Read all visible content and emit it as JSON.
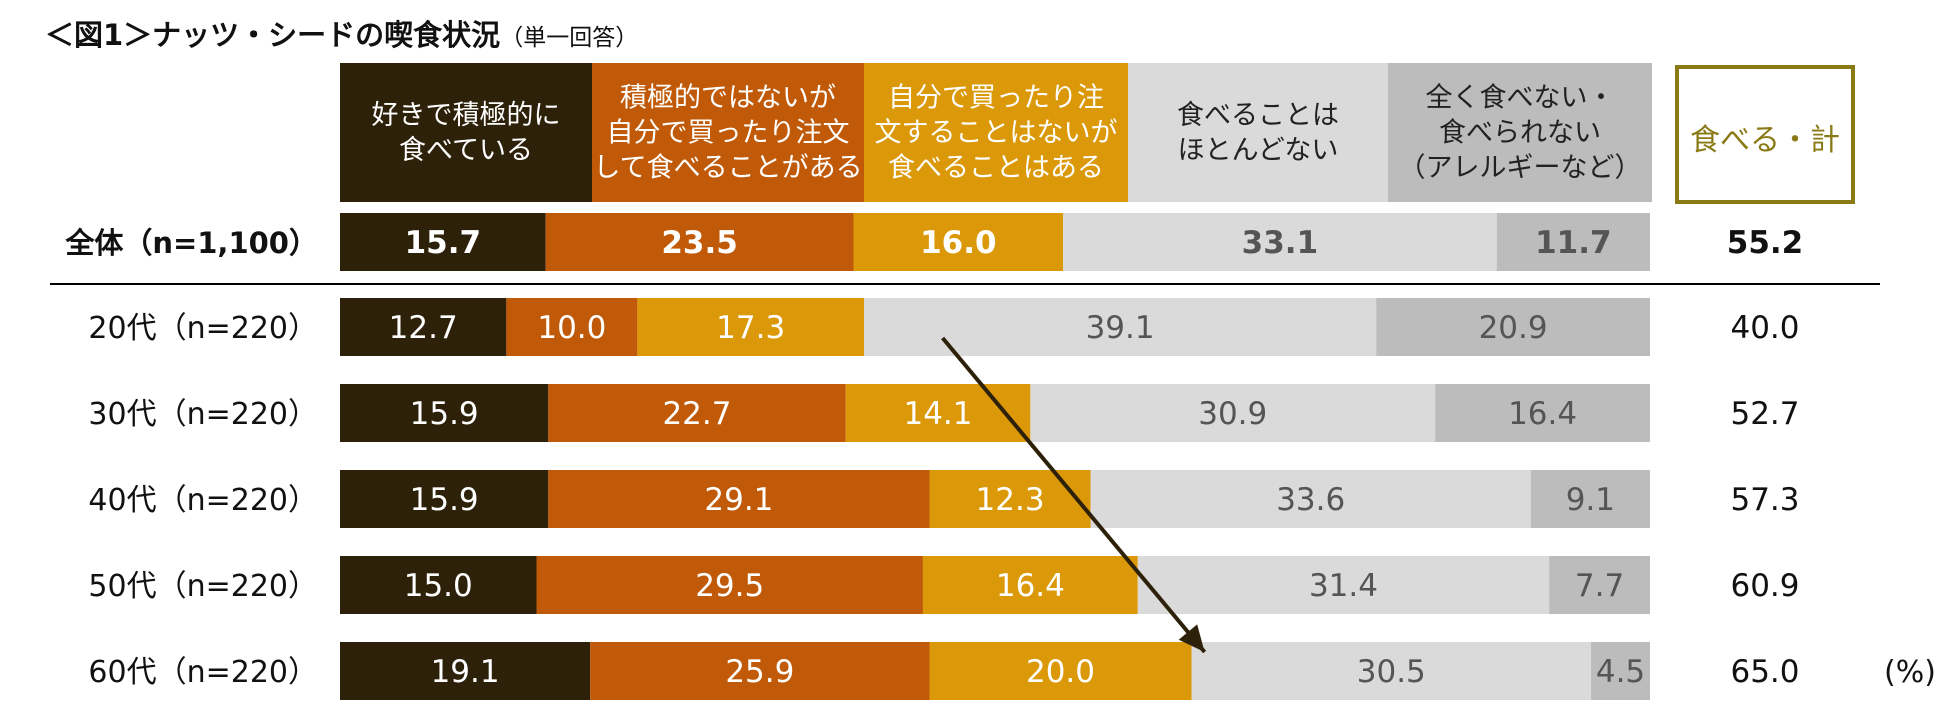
{
  "title": "＜図1＞ナッツ・シードの喫食状況",
  "subtitle": "（単一回答）",
  "unit_label": "(%)",
  "chart_data": {
    "type": "bar",
    "stacked": true,
    "orientation": "horizontal",
    "xlim": [
      0,
      100
    ],
    "categories": [
      "全体（n=1,100）",
      "20代（n=220）",
      "30代（n=220）",
      "40代（n=220）",
      "50代（n=220）",
      "60代（n=220）"
    ],
    "series": [
      {
        "name": "好きで積極的に食べている",
        "label_lines": [
          "好きで積極的に",
          "食べている"
        ],
        "color": "#2e2109",
        "header_text_color": "#ffffff",
        "text_color": "#ffffff",
        "values": [
          15.7,
          12.7,
          15.9,
          15.9,
          15.0,
          19.1
        ]
      },
      {
        "name": "積極的ではないが自分で買ったり注文して食べることがある",
        "label_lines": [
          "積極的ではないが",
          "自分で買ったり注文",
          "して食べることがある"
        ],
        "color": "#c05a08",
        "header_text_color": "#ffffff",
        "text_color": "#ffffff",
        "values": [
          23.5,
          10.0,
          22.7,
          29.1,
          29.5,
          25.9
        ]
      },
      {
        "name": "自分で買ったり注文することはないが食べることはある",
        "label_lines": [
          "自分で買ったり注",
          "文することはないが",
          "食べることはある"
        ],
        "color": "#db9808",
        "header_text_color": "#ffffff",
        "text_color": "#ffffff",
        "values": [
          16.0,
          17.3,
          14.1,
          12.3,
          16.4,
          20.0
        ]
      },
      {
        "name": "食べることはほとんどない",
        "label_lines": [
          "食べることは",
          "ほとんどない"
        ],
        "color": "#dadada",
        "header_text_color": "#222222",
        "text_color": "#555555",
        "values": [
          33.1,
          39.1,
          30.9,
          33.6,
          31.4,
          30.5
        ]
      },
      {
        "name": "全く食べない・食べられない（アレルギーなど）",
        "label_lines": [
          "全く食べない・",
          "食べられない",
          "（アレルギーなど）"
        ],
        "color": "#bcbcbc",
        "header_text_color": "#222222",
        "text_color": "#555555",
        "values": [
          11.7,
          20.9,
          16.4,
          9.1,
          7.7,
          4.5
        ]
      }
    ],
    "total": {
      "name": "食べる・計",
      "color": "#8a7a16",
      "values": [
        55.2,
        40.0,
        52.7,
        57.3,
        60.9,
        65.0
      ]
    },
    "annotations": [
      {
        "type": "arrow",
        "from": {
          "category": "20代（n=220）",
          "x": 46.0
        },
        "to": {
          "category": "60代（n=220）",
          "x": 66.0
        },
        "color": "#2e2109"
      }
    ]
  }
}
